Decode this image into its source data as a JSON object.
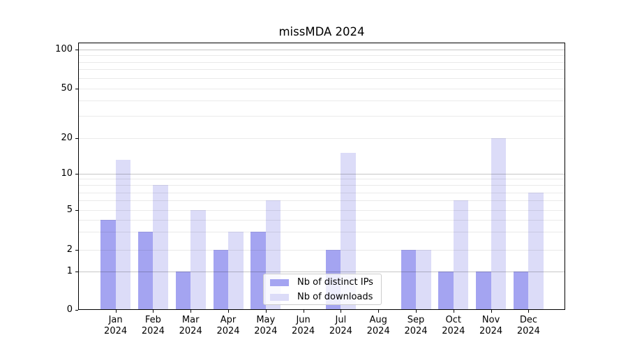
{
  "chart_data": {
    "type": "bar",
    "title": "missMDA 2024",
    "categories": [
      "Jan",
      "Feb",
      "Mar",
      "Apr",
      "May",
      "Jun",
      "Jul",
      "Aug",
      "Sep",
      "Oct",
      "Nov",
      "Dec"
    ],
    "category_year": "2024",
    "series": [
      {
        "name": "Nb of distinct IPs",
        "color": "#a4a4f1",
        "values": [
          4,
          3,
          1,
          2,
          3,
          0,
          2,
          0,
          2,
          1,
          1,
          1
        ]
      },
      {
        "name": "Nb of downloads",
        "color": "#dcdcf8",
        "values": [
          13,
          8,
          5,
          3,
          6,
          0,
          15,
          0,
          2,
          6,
          20,
          7
        ]
      }
    ],
    "yaxis": {
      "scale": "symlog",
      "ticks": [
        0,
        1,
        2,
        5,
        10,
        20,
        50,
        100
      ],
      "ylim": [
        0,
        110
      ]
    },
    "grid": {
      "on": true,
      "major_lines": [
        1,
        10,
        100
      ],
      "minor_lines": [
        2,
        3,
        4,
        5,
        6,
        7,
        8,
        9,
        20,
        30,
        40,
        50,
        60,
        70,
        80,
        90
      ]
    },
    "legend": {
      "position": "lower center"
    }
  },
  "colors": {
    "major_grid": "rgba(0,0,0,0.22)",
    "minor_grid": "rgba(0,0,0,0.082)",
    "axis": "#000000",
    "background": "#ffffff"
  }
}
